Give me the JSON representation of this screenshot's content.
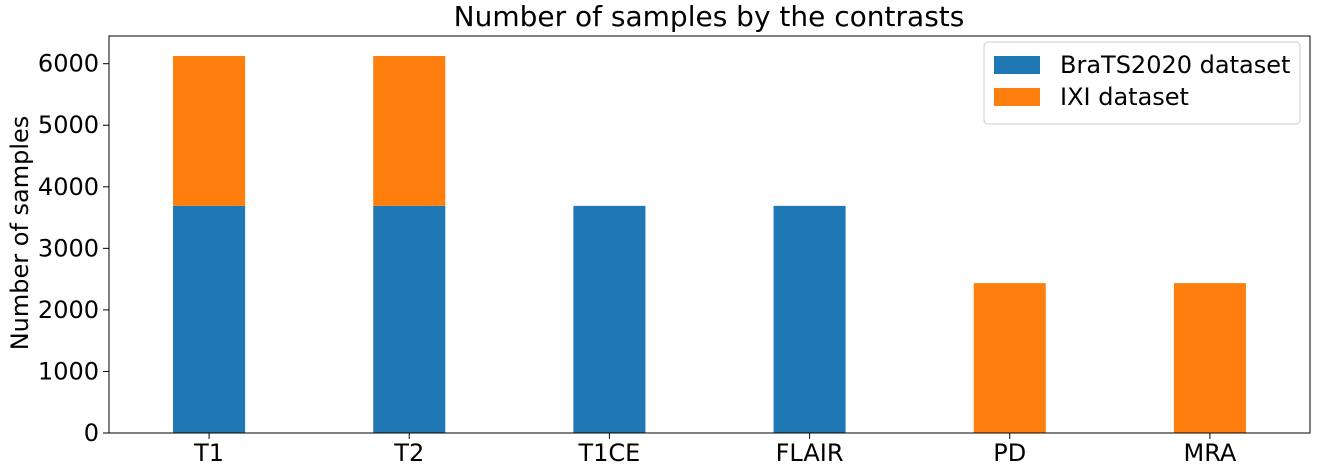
{
  "chart_data": {
    "type": "bar",
    "stacked": true,
    "title": "Number of samples by the contrasts",
    "xlabel": "",
    "ylabel": "Number of samples",
    "categories": [
      "T1",
      "T2",
      "T1CE",
      "FLAIR",
      "PD",
      "MRA"
    ],
    "series": [
      {
        "name": "BraTS2020 dataset",
        "color": "#1f77b4",
        "values": [
          3690,
          3690,
          3690,
          3690,
          0,
          0
        ]
      },
      {
        "name": "IXI dataset",
        "color": "#ff7f0e",
        "values": [
          2435,
          2435,
          0,
          0,
          2435,
          2435
        ]
      }
    ],
    "ylim": [
      0,
      6450
    ],
    "yticks": [
      0,
      1000,
      2000,
      3000,
      4000,
      5000,
      6000
    ],
    "grid": false,
    "legend_position": "top-right"
  }
}
